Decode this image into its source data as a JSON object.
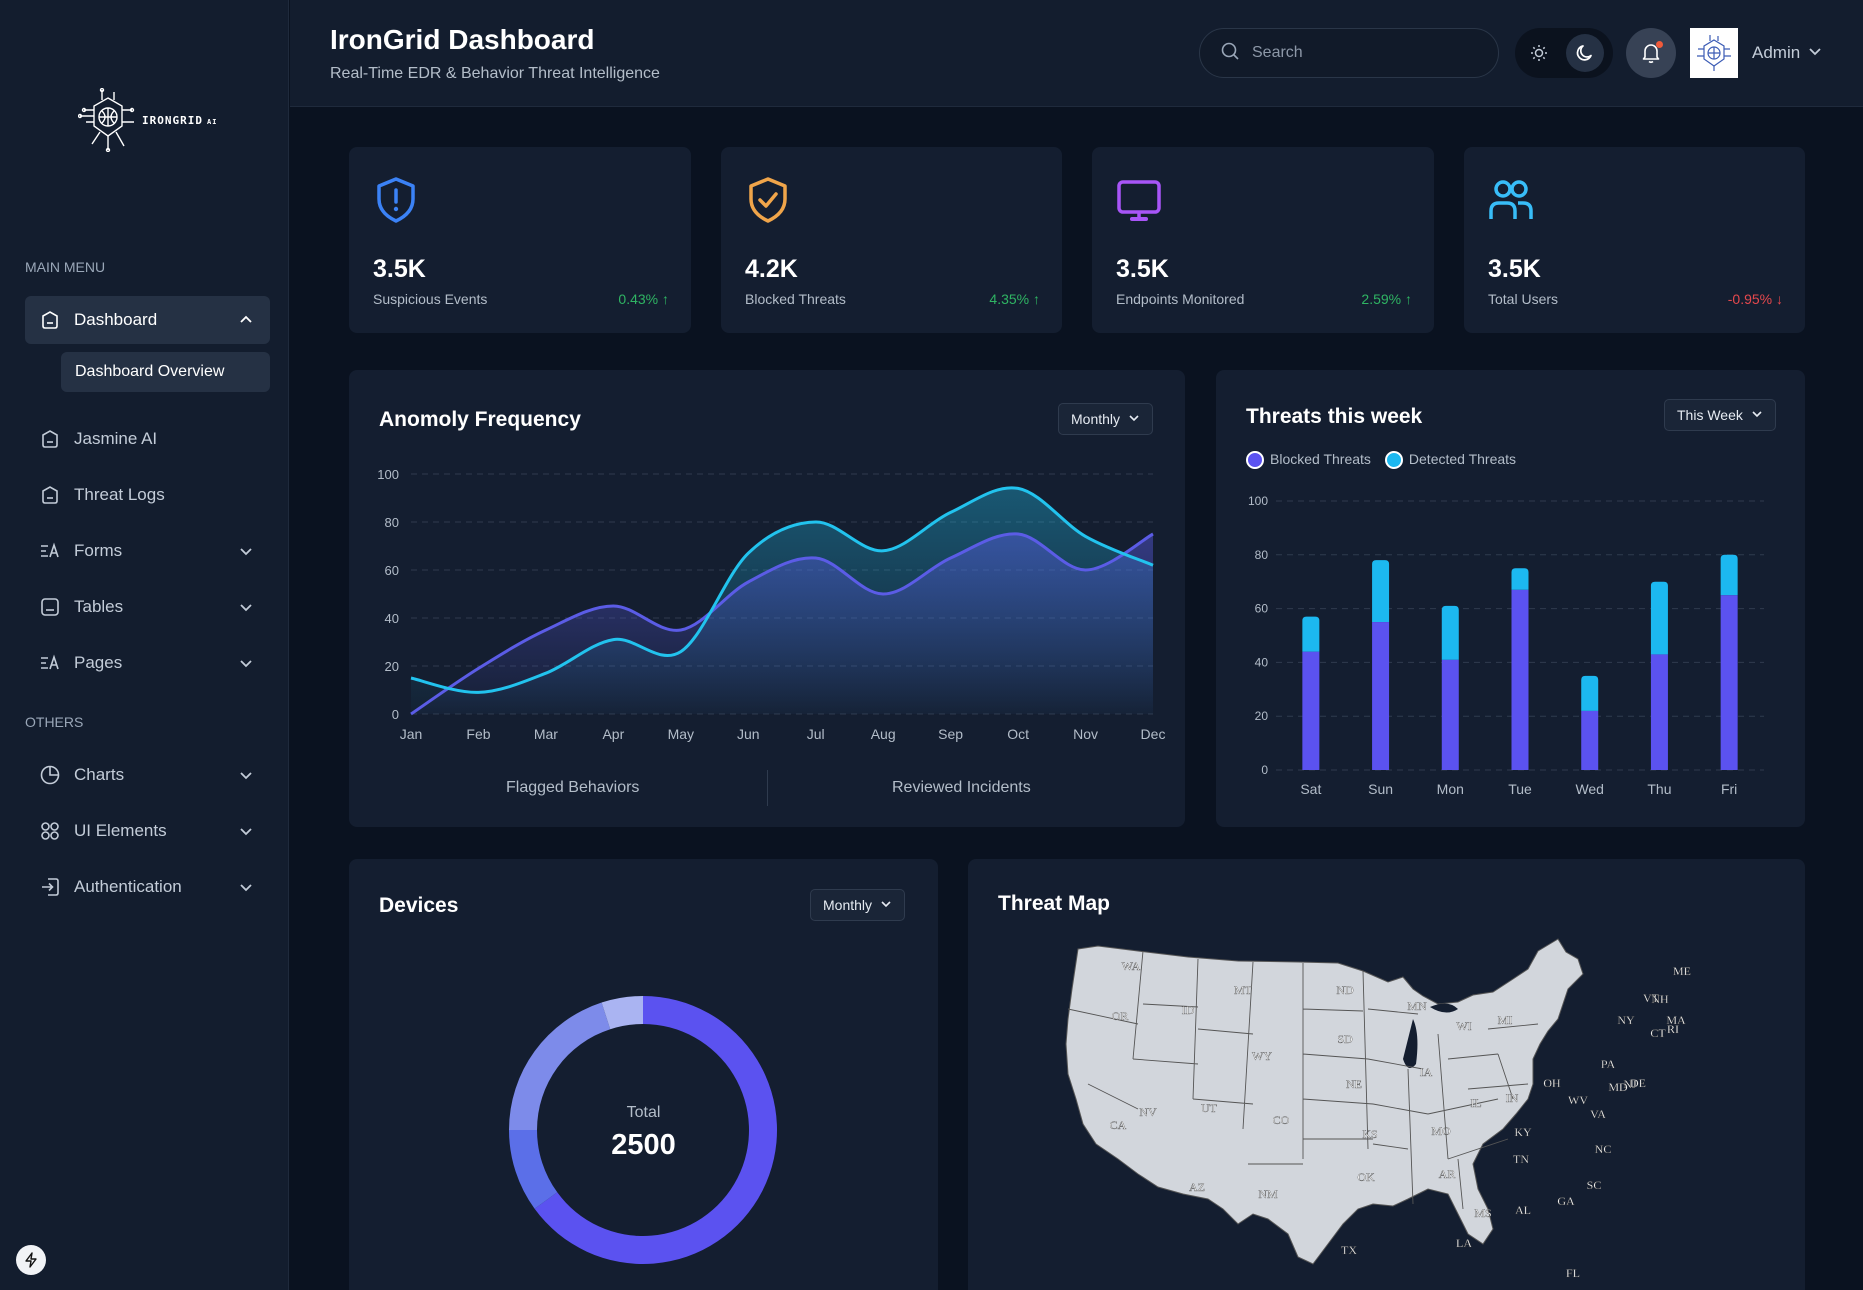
{
  "brand": {
    "logo_text": "IRONGRID",
    "logo_suffix": "AI"
  },
  "header": {
    "title": "IronGrid Dashboard",
    "subtitle": "Real-Time EDR & Behavior Threat Intelligence",
    "search_placeholder": "Search",
    "user_name": "Admin"
  },
  "sidebar": {
    "main_menu_title": "MAIN MENU",
    "others_title": "OTHERS",
    "items": [
      {
        "label": "Dashboard",
        "icon": "home-icon",
        "state": "expanded"
      },
      {
        "label": "Jasmine AI",
        "icon": "home-icon"
      },
      {
        "label": "Threat Logs",
        "icon": "home-icon"
      },
      {
        "label": "Forms",
        "icon": "forms-icon"
      },
      {
        "label": "Tables",
        "icon": "table-icon"
      },
      {
        "label": "Pages",
        "icon": "pages-icon"
      },
      {
        "label": "Charts",
        "icon": "pie-chart-icon"
      },
      {
        "label": "UI Elements",
        "icon": "grid-icon"
      },
      {
        "label": "Authentication",
        "icon": "login-icon"
      }
    ],
    "sub_item": "Dashboard Overview"
  },
  "stats": [
    {
      "value": "3.5K",
      "label": "Suspicious Events",
      "change": "0.43%",
      "trend": "up",
      "color": "#3b82f6",
      "icon": "shield-alert-icon"
    },
    {
      "value": "4.2K",
      "label": "Blocked Threats",
      "change": "4.35%",
      "trend": "up",
      "color": "#f0a54a",
      "icon": "shield-check-icon"
    },
    {
      "value": "3.5K",
      "label": "Endpoints Monitored",
      "change": "2.59%",
      "trend": "up",
      "color": "#a855f7",
      "icon": "monitor-icon"
    },
    {
      "value": "3.5K",
      "label": "Total Users",
      "change": "-0.95%",
      "trend": "down",
      "color": "#38bdf8",
      "icon": "users-icon"
    }
  ],
  "anomaly": {
    "title": "Anomoly Frequency",
    "period": "Monthly",
    "tabs": [
      "Flagged Behaviors",
      "Reviewed Incidents"
    ]
  },
  "threats_week": {
    "title": "Threats this week",
    "period": "This Week"
  },
  "devices": {
    "title": "Devices",
    "period": "Monthly",
    "center_label": "Total",
    "center_value": "2500"
  },
  "threat_map": {
    "title": "Threat Map",
    "states": [
      "WA",
      "OR",
      "CA",
      "ID",
      "NV",
      "MT",
      "WY",
      "UT",
      "AZ",
      "CO",
      "NM",
      "ND",
      "SD",
      "NE",
      "KS",
      "OK",
      "TX",
      "MN",
      "IA",
      "MO",
      "AR",
      "LA",
      "WI",
      "IL",
      "MS",
      "MI",
      "IN",
      "KY",
      "TN",
      "AL",
      "OH",
      "GA",
      "FL",
      "SC",
      "NC",
      "VA",
      "WV",
      "PA",
      "NY",
      "VT",
      "NH",
      "ME",
      "MA",
      "CT",
      "RI",
      "NJ",
      "DE",
      "MD"
    ]
  },
  "chart_data": [
    {
      "type": "area",
      "title": "Anomoly Frequency",
      "categories": [
        "Jan",
        "Feb",
        "Mar",
        "Apr",
        "May",
        "Jun",
        "Jul",
        "Aug",
        "Sep",
        "Oct",
        "Nov",
        "Dec"
      ],
      "ylim": [
        0,
        100
      ],
      "yticks": [
        0,
        20,
        40,
        60,
        80,
        100
      ],
      "series": [
        {
          "name": "Flagged Behaviors",
          "color": "#5b5ce6",
          "values": [
            0,
            19,
            35,
            45,
            35,
            55,
            65,
            50,
            65,
            75,
            60,
            75
          ]
        },
        {
          "name": "Reviewed Incidents",
          "color": "#22c3ee",
          "values": [
            15,
            9,
            17,
            31,
            26,
            67,
            80,
            68,
            84,
            94,
            74,
            62
          ]
        }
      ]
    },
    {
      "type": "bar",
      "title": "Threats this week",
      "stacked": true,
      "categories": [
        "Sat",
        "Sun",
        "Mon",
        "Tue",
        "Wed",
        "Thu",
        "Fri"
      ],
      "ylim": [
        0,
        100
      ],
      "yticks": [
        0,
        20,
        40,
        60,
        80,
        100
      ],
      "series": [
        {
          "name": "Blocked Threats",
          "color": "#5b52f0",
          "values": [
            44,
            55,
            41,
            67,
            22,
            43,
            65
          ]
        },
        {
          "name": "Detected Threats",
          "color": "#1cb8f0",
          "values": [
            13,
            23,
            20,
            8,
            13,
            27,
            15
          ]
        }
      ]
    },
    {
      "type": "pie",
      "title": "Devices",
      "donut": true,
      "total": 2500,
      "slices": [
        {
          "value": 65,
          "color": "#5b52f0"
        },
        {
          "value": 10,
          "color": "#5b6fe8"
        },
        {
          "value": 20,
          "color": "#7d8bea"
        },
        {
          "value": 5,
          "color": "#aab4f2"
        }
      ]
    }
  ]
}
